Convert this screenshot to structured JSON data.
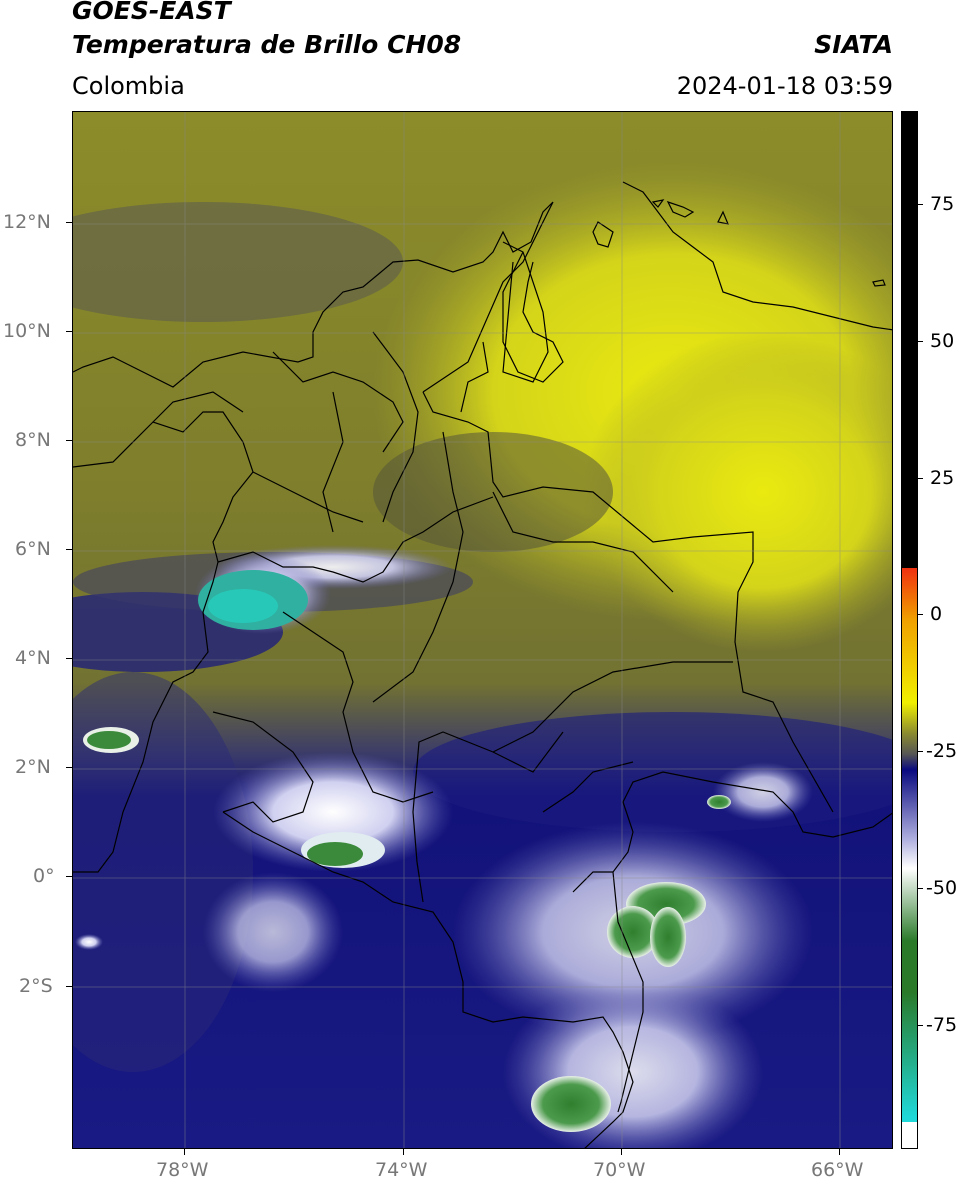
{
  "header": {
    "satellite": "GOES-EAST",
    "product": "Temperatura de Brillo CH08",
    "region": "Colombia",
    "org": "SIATA",
    "datetime": "2024-01-18 03:59"
  },
  "map": {
    "lat_ticks": [
      "12°N",
      "10°N",
      "8°N",
      "6°N",
      "4°N",
      "2°N",
      "0°",
      "2°S"
    ],
    "lon_ticks": [
      "78°W",
      "74°W",
      "70°W",
      "66°W"
    ]
  },
  "colorbar": {
    "labels": [
      "75",
      "50",
      "25",
      "0",
      "-25",
      "-50",
      "-75"
    ],
    "colors": {
      "black": "#000000",
      "red": "#f03010",
      "orange": "#f0a000",
      "yellow": "#f0f000",
      "olive": "#8a8a30",
      "gray": "#555555",
      "navy": "#0a0a80",
      "lavender": "#aaaadd",
      "white": "#ffffff",
      "green": "#2a7a2a",
      "cyan": "#20d8d8"
    }
  }
}
